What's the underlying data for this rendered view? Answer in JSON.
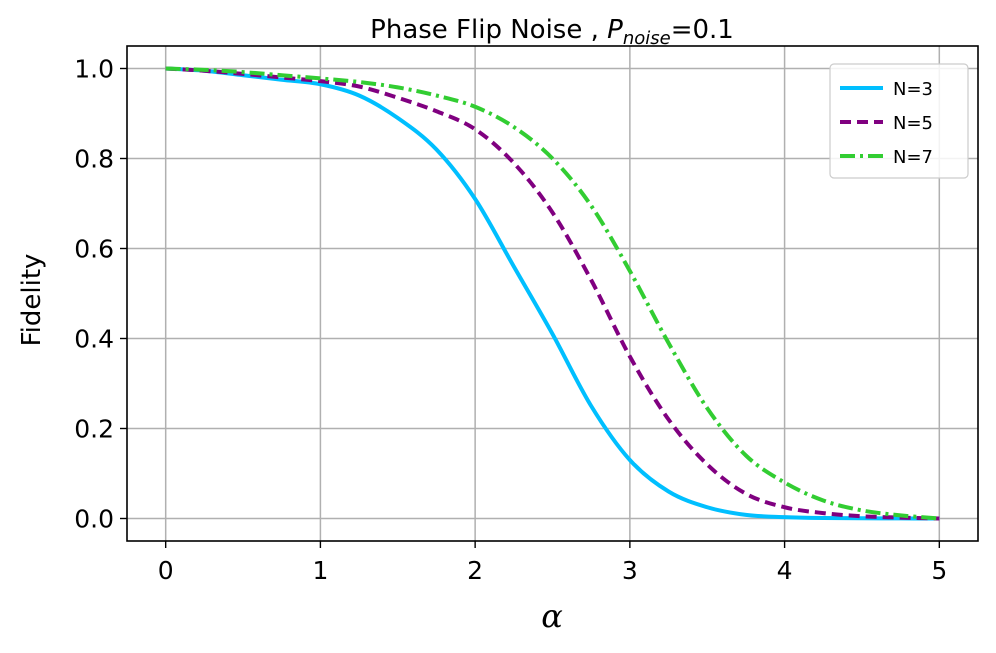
{
  "chart_data": {
    "type": "line",
    "title": {
      "prefix": "Phase Flip Noise , ",
      "symbol": "P",
      "subscript": "noise",
      "suffix": "=0.1"
    },
    "xlabel": "α",
    "ylabel": "Fidelity",
    "xlim": [
      -0.25,
      5.25
    ],
    "ylim": [
      -0.05,
      1.05
    ],
    "xticks": [
      0,
      1,
      2,
      3,
      4,
      5
    ],
    "xtick_labels": [
      "0",
      "1",
      "2",
      "3",
      "4",
      "5"
    ],
    "yticks": [
      0.0,
      0.2,
      0.4,
      0.6,
      0.8,
      1.0
    ],
    "ytick_labels": [
      "0.0",
      "0.2",
      "0.4",
      "0.6",
      "0.8",
      "1.0"
    ],
    "grid": true,
    "legend": "top-right",
    "series": [
      {
        "name": "N=3",
        "color": "#00bfff",
        "style": "solid",
        "x": [
          0,
          0.25,
          0.5,
          0.75,
          1.0,
          1.25,
          1.5,
          1.75,
          2.0,
          2.25,
          2.5,
          2.75,
          3.0,
          3.25,
          3.5,
          3.75,
          4.0,
          4.25,
          4.5,
          4.75,
          5.0
        ],
        "y": [
          1.0,
          0.995,
          0.985,
          0.975,
          0.965,
          0.94,
          0.89,
          0.82,
          0.71,
          0.56,
          0.41,
          0.25,
          0.13,
          0.06,
          0.025,
          0.008,
          0.003,
          0.001,
          0.0005,
          0.0002,
          0.0
        ]
      },
      {
        "name": "N=5",
        "color": "#800080",
        "style": "dashed",
        "x": [
          0,
          0.25,
          0.5,
          0.75,
          1.0,
          1.25,
          1.5,
          1.75,
          2.0,
          2.25,
          2.5,
          2.75,
          3.0,
          3.25,
          3.5,
          3.75,
          4.0,
          4.25,
          4.5,
          4.75,
          5.0
        ],
        "y": [
          1.0,
          0.995,
          0.988,
          0.98,
          0.972,
          0.96,
          0.935,
          0.905,
          0.865,
          0.79,
          0.68,
          0.53,
          0.36,
          0.22,
          0.12,
          0.055,
          0.025,
          0.012,
          0.005,
          0.002,
          0.0
        ]
      },
      {
        "name": "N=7",
        "color": "#32cd32",
        "style": "dashdot",
        "x": [
          0,
          0.25,
          0.5,
          0.75,
          1.0,
          1.25,
          1.5,
          1.75,
          2.0,
          2.25,
          2.5,
          2.75,
          3.0,
          3.25,
          3.5,
          3.75,
          4.0,
          4.25,
          4.5,
          4.75,
          5.0
        ],
        "y": [
          1.0,
          0.997,
          0.992,
          0.985,
          0.978,
          0.97,
          0.958,
          0.94,
          0.915,
          0.87,
          0.8,
          0.695,
          0.55,
          0.39,
          0.245,
          0.14,
          0.08,
          0.04,
          0.018,
          0.007,
          0.0
        ]
      }
    ]
  }
}
